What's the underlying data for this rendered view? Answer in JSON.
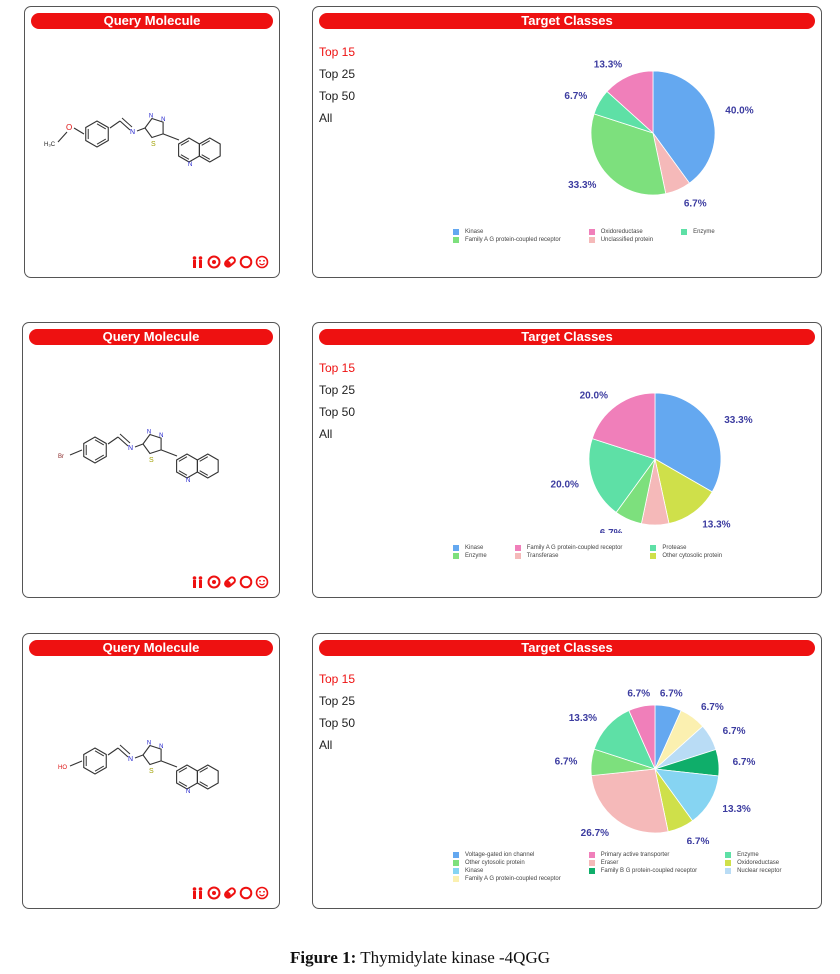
{
  "rows": [
    {
      "query_title": "Query Molecule",
      "target_title": "Target Classes",
      "substituent": "H3C-O",
      "substituent_label": "H₃C",
      "options": [
        "Top 15",
        "Top 25",
        "Top 50",
        "All"
      ],
      "active_option": 0,
      "chart_data": {
        "type": "pie",
        "slices": [
          {
            "label": "Kinase",
            "value": 40.0,
            "color": "#64a8f0",
            "text": "40.0%"
          },
          {
            "label": "Unclassified protein",
            "value": 6.7,
            "color": "#f5b9b9",
            "text": "6.7%"
          },
          {
            "label": "Family A G protein-coupled receptor",
            "value": 33.3,
            "color": "#7de07d",
            "text": "33.3%"
          },
          {
            "label": "Enzyme",
            "value": 6.7,
            "color": "#5ee0a6",
            "text": "6.7%"
          },
          {
            "label": "Oxidoreductase",
            "value": 13.3,
            "color": "#f07fba",
            "text": "13.3%"
          }
        ],
        "legend": [
          "Kinase",
          "Oxidoreductase",
          "Enzyme",
          "Family A G protein-coupled receptor",
          "Unclassified protein"
        ],
        "legend_colors": [
          "#64a8f0",
          "#f07fba",
          "#5ee0a6",
          "#7de07d",
          "#f5b9b9"
        ]
      }
    },
    {
      "query_title": "Query Molecule",
      "target_title": "Target Classes",
      "substituent": "Br",
      "substituent_label": "Br",
      "options": [
        "Top 15",
        "Top 25",
        "Top 50",
        "All"
      ],
      "active_option": 0,
      "chart_data": {
        "type": "pie",
        "slices": [
          {
            "label": "Kinase",
            "value": 33.3,
            "color": "#64a8f0",
            "text": "33.3%"
          },
          {
            "label": "Other cytosolic protein",
            "value": 13.3,
            "color": "#cfe04a",
            "text": "13.3%"
          },
          {
            "label": "Transferase",
            "value": 6.7,
            "color": "#f5b9b9",
            "text": "6.7%"
          },
          {
            "label": "Enzyme",
            "value": 6.7,
            "color": "#7de07d",
            "text": "6.7%"
          },
          {
            "label": "Protease",
            "value": 20.0,
            "color": "#5ee0a6",
            "text": "20.0%"
          },
          {
            "label": "Family A G protein-coupled receptor",
            "value": 20.0,
            "color": "#f07fba",
            "text": "20.0%"
          }
        ],
        "legend": [
          "Kinase",
          "Family A G protein-coupled receptor",
          "Protease",
          "Enzyme",
          "Transferase",
          "Other cytosolic protein"
        ],
        "legend_colors": [
          "#64a8f0",
          "#f07fba",
          "#5ee0a6",
          "#7de07d",
          "#f5b9b9",
          "#cfe04a"
        ]
      }
    },
    {
      "query_title": "Query Molecule",
      "target_title": "Target Classes",
      "substituent": "HO",
      "substituent_label": "HO",
      "options": [
        "Top 15",
        "Top 25",
        "Top 50",
        "All"
      ],
      "active_option": 0,
      "chart_data": {
        "type": "pie",
        "slices": [
          {
            "label": "Voltage-gated ion channel",
            "value": 6.7,
            "color": "#64a8f0",
            "text": "6.7%"
          },
          {
            "label": "Family A G protein-coupled receptor",
            "value": 6.7,
            "color": "#fbf0b0",
            "text": "6.7%"
          },
          {
            "label": "Nuclear receptor",
            "value": 6.7,
            "color": "#b9dcf5",
            "text": "6.7%"
          },
          {
            "label": "Family B G protein-coupled receptor",
            "value": 6.7,
            "color": "#0fae6a",
            "text": "6.7%"
          },
          {
            "label": "Kinase",
            "value": 13.3,
            "color": "#86d4f2",
            "text": "13.3%"
          },
          {
            "label": "Oxidoreductase",
            "value": 6.7,
            "color": "#cfe04a",
            "text": "6.7%"
          },
          {
            "label": "Eraser",
            "value": 26.7,
            "color": "#f5b9b9",
            "text": "26.7%"
          },
          {
            "label": "Other cytosolic protein",
            "value": 6.7,
            "color": "#7de07d",
            "text": "6.7%"
          },
          {
            "label": "Enzyme",
            "value": 13.3,
            "color": "#5ee0a6",
            "text": "13.3%"
          },
          {
            "label": "Primary active transporter",
            "value": 6.7,
            "color": "#f07fba",
            "text": "6.7%"
          }
        ],
        "legend": [
          "Voltage-gated ion channel",
          "Primary active transporter",
          "Enzyme",
          "Other cytosolic protein",
          "Eraser",
          "Oxidoreductase",
          "Kinase",
          "Family B G protein-coupled receptor",
          "Nuclear receptor",
          "Family A G protein-coupled receptor"
        ],
        "legend_colors": [
          "#64a8f0",
          "#f07fba",
          "#5ee0a6",
          "#7de07d",
          "#f5b9b9",
          "#cfe04a",
          "#86d4f2",
          "#0fae6a",
          "#b9dcf5",
          "#fbf0b0"
        ]
      }
    }
  ],
  "caption": {
    "bold": "Figure 1:",
    "text": " Thymidylate kinase -4QGG"
  },
  "colors": {
    "header": "#ee1111",
    "label": "#3c3ca0",
    "atom_n": "#2222cc",
    "atom_o": "#dd1111",
    "atom_s": "#a0a000"
  },
  "icons": [
    "people-icon",
    "target-icon",
    "pill-icon",
    "ring-icon",
    "smiley-icon"
  ]
}
